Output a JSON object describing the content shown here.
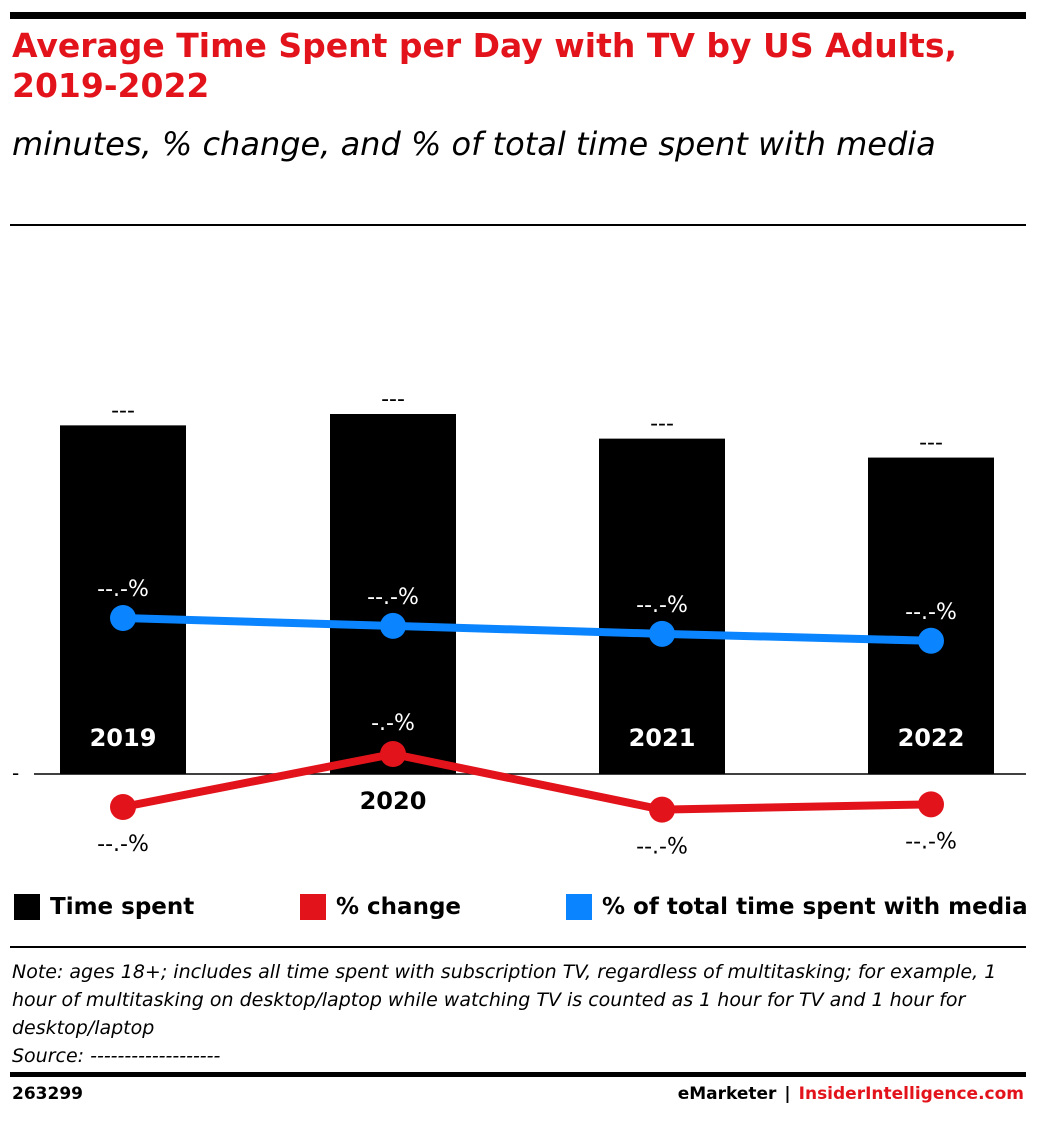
{
  "header": {
    "title": "Average Time Spent per Day with TV by US Adults, 2019-2022",
    "subtitle": "minutes, % change, and % of total time spent with media"
  },
  "colors": {
    "title": "#e3131b",
    "bars": "#000000",
    "change_line": "#e3131b",
    "share_line": "#0a84ff"
  },
  "chart_data": {
    "type": "bar",
    "categories": [
      "2019",
      "2020",
      "2021",
      "2022"
    ],
    "zero_tick_label": "-",
    "series": [
      {
        "name": "Time spent",
        "kind": "bar",
        "values": [
          184,
          190,
          177,
          167
        ],
        "labels": [
          "---",
          "---",
          "---",
          "---"
        ]
      },
      {
        "name": "% change",
        "kind": "line",
        "values": [
          -1.2,
          0.8,
          -1.3,
          -1.1
        ],
        "labels": [
          "--.-%",
          "-.-%",
          "--.-%",
          "--.-%"
        ]
      },
      {
        "name": "% of total time spent with media",
        "kind": "line",
        "values": [
          56.5,
          55.7,
          54.9,
          54.2
        ],
        "labels": [
          "--.-%",
          "--.-%",
          "--.-%",
          "--.-%"
        ]
      }
    ],
    "legend_position": "bottom",
    "grid": false
  },
  "footer": {
    "note": "Note: ages 18+; includes all time spent with subscription TV, regardless of multitasking; for example, 1 hour of multitasking on desktop/laptop while watching TV is counted as 1 hour for TV and 1 hour for desktop/laptop",
    "source": "Source: -------------------",
    "chart_id": "263299",
    "brand_left": "eMarketer",
    "brand_sep": "|",
    "brand_right": "InsiderIntelligence.com"
  }
}
